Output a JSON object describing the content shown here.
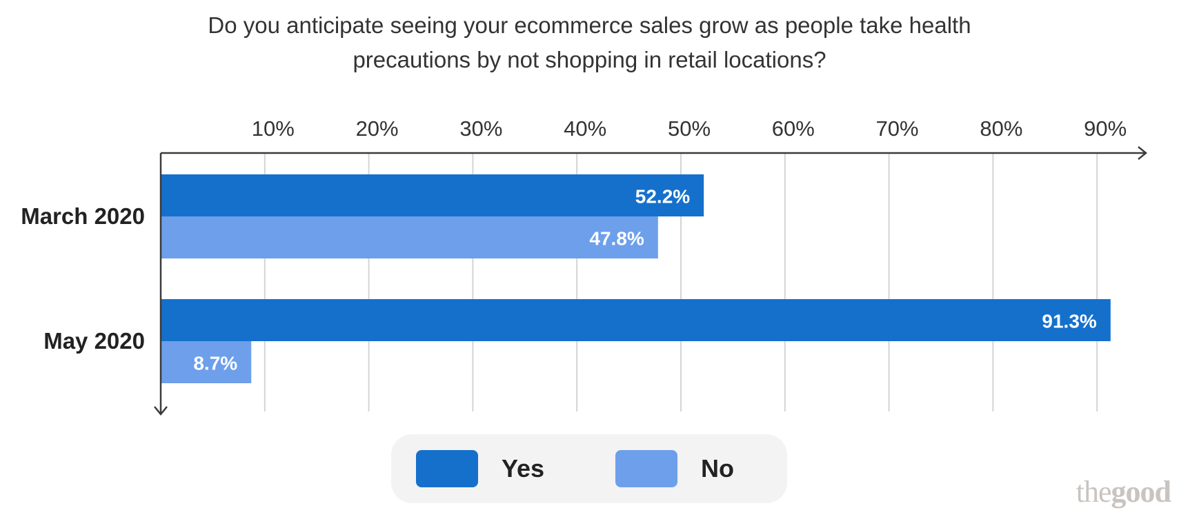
{
  "chart_data": {
    "type": "bar",
    "orientation": "horizontal",
    "title_lines": [
      "Do you anticipate seeing your ecommerce sales grow as people take health",
      "precautions by not shopping in retail locations?"
    ],
    "categories": [
      "March 2020",
      "May 2020"
    ],
    "series": [
      {
        "name": "Yes",
        "values": [
          52.2,
          91.3
        ],
        "labels": [
          "52.2%",
          "91.3%"
        ],
        "color": "#1570cc"
      },
      {
        "name": "No",
        "values": [
          47.8,
          8.7
        ],
        "labels": [
          "47.8%",
          "8.7%"
        ],
        "color": "#6d9feb"
      }
    ],
    "x_ticks": [
      10,
      20,
      30,
      40,
      50,
      60,
      70,
      80,
      90
    ],
    "x_tick_labels": [
      "10%",
      "20%",
      "30%",
      "40%",
      "50%",
      "60%",
      "70%",
      "80%",
      "90%"
    ],
    "xlim": [
      0,
      94
    ],
    "grid": true,
    "legend_placement": "bottom-center"
  },
  "watermark": {
    "part1": "the",
    "part2": "good"
  }
}
